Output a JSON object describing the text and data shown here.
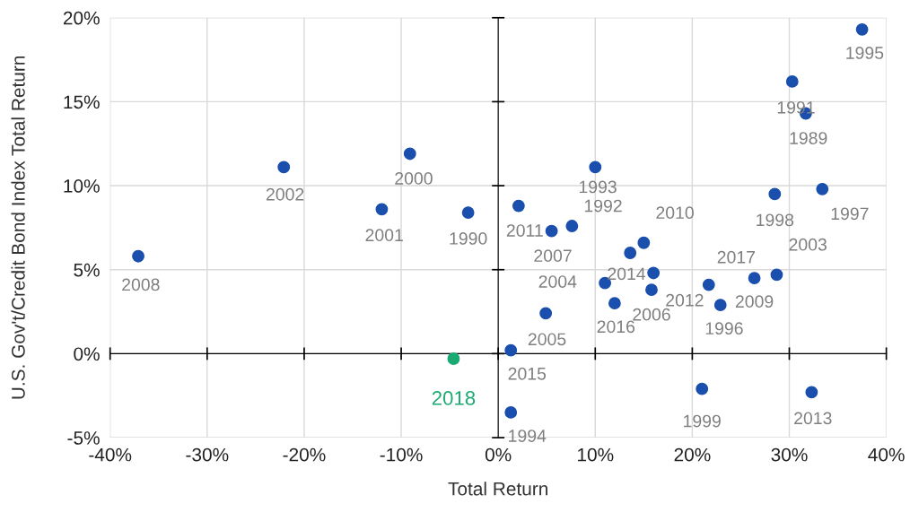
{
  "chart_data": {
    "type": "scatter",
    "xlabel": "Total Return",
    "ylabel": "U.S. Gov't/Credit Bond Index Total Return",
    "series": [
      {
        "color": "#1a4fad",
        "x": [
          37.5,
          30.3,
          31.7,
          33.4,
          28.5,
          28.7,
          26.4,
          21.7,
          22.9,
          32.3,
          21.0,
          1.3,
          1.3,
          4.9,
          11.0,
          12.0,
          15.8,
          13.6,
          16.0,
          15.0,
          5.5,
          7.6,
          2.1,
          10.0,
          -3.1,
          -9.1,
          -12.0,
          -22.1,
          -37.1
        ],
        "values": [
          19.3,
          16.2,
          14.3,
          9.8,
          9.5,
          4.7,
          4.5,
          4.1,
          2.9,
          -2.3,
          -2.1,
          -3.5,
          0.2,
          2.4,
          4.2,
          3.0,
          3.8,
          6.0,
          4.8,
          6.6,
          7.3,
          7.6,
          8.8,
          11.1,
          8.4,
          11.9,
          8.6,
          11.1,
          5.8
        ]
      },
      {
        "color": "#1aaa73",
        "x": [
          -4.6
        ],
        "values": [
          -0.3
        ]
      }
    ],
    "annotations": [
      {
        "text": "1995",
        "x": 37.5,
        "y": 19.3
      },
      {
        "text": "1991",
        "x": 30.3,
        "y": 16.2
      },
      {
        "text": "1989",
        "x": 31.7,
        "y": 14.3
      },
      {
        "text": "1997",
        "x": 33.4,
        "y": 9.8
      },
      {
        "text": "1998",
        "x": 28.5,
        "y": 9.5
      },
      {
        "text": "2003",
        "x": 28.7,
        "y": 4.7
      },
      {
        "text": "2009",
        "x": 26.4,
        "y": 4.5
      },
      {
        "text": "2017",
        "x": 21.7,
        "y": 4.1
      },
      {
        "text": "1996",
        "x": 22.9,
        "y": 2.9
      },
      {
        "text": "2013",
        "x": 32.3,
        "y": -2.3
      },
      {
        "text": "1999",
        "x": 21.0,
        "y": -2.1
      },
      {
        "text": "1994",
        "x": 1.3,
        "y": -3.5
      },
      {
        "text": "2015",
        "x": 1.3,
        "y": 0.2
      },
      {
        "text": "2005",
        "x": 4.9,
        "y": 2.4
      },
      {
        "text": "2004",
        "x": 11.0,
        "y": 4.2
      },
      {
        "text": "2016",
        "x": 12.0,
        "y": 3.0
      },
      {
        "text": "2006",
        "x": 15.8,
        "y": 3.8
      },
      {
        "text": "2014",
        "x": 13.6,
        "y": 6.0
      },
      {
        "text": "2012",
        "x": 16.0,
        "y": 4.8
      },
      {
        "text": "2010",
        "x": 15.0,
        "y": 6.6
      },
      {
        "text": "2007",
        "x": 5.5,
        "y": 7.3
      },
      {
        "text": "1992",
        "x": 7.6,
        "y": 7.6
      },
      {
        "text": "2011",
        "x": 2.1,
        "y": 8.8
      },
      {
        "text": "1993",
        "x": 10.0,
        "y": 11.1
      },
      {
        "text": "1990",
        "x": -3.1,
        "y": 8.4
      },
      {
        "text": "2000",
        "x": -9.1,
        "y": 11.9
      },
      {
        "text": "2001",
        "x": -12.0,
        "y": 8.6
      },
      {
        "text": "2002",
        "x": -22.1,
        "y": 11.1
      },
      {
        "text": "2008",
        "x": -37.1,
        "y": 5.8
      },
      {
        "text": "2018",
        "x": -4.6,
        "y": -0.3
      }
    ],
    "xlim": [
      -40,
      40
    ],
    "xticks": [
      {
        "value": -40,
        "label": "-40%"
      },
      {
        "value": -30,
        "label": "-30%"
      },
      {
        "value": -20,
        "label": "-20%"
      },
      {
        "value": -10,
        "label": "-10%"
      },
      {
        "value": 0,
        "label": "0%"
      },
      {
        "value": 10,
        "label": "10%"
      },
      {
        "value": 20,
        "label": "20%"
      },
      {
        "value": 30,
        "label": "30%"
      },
      {
        "value": 40,
        "label": "40%"
      }
    ],
    "ylim": [
      -5,
      20
    ],
    "yticks": [
      {
        "value": -5,
        "label": "-5%"
      },
      {
        "value": 0,
        "label": "0%"
      },
      {
        "value": 5,
        "label": "5%"
      },
      {
        "value": 10,
        "label": "10%"
      },
      {
        "value": 15,
        "label": "15%"
      },
      {
        "value": 20,
        "label": "20%"
      }
    ],
    "grid": true,
    "marker": "circle"
  }
}
